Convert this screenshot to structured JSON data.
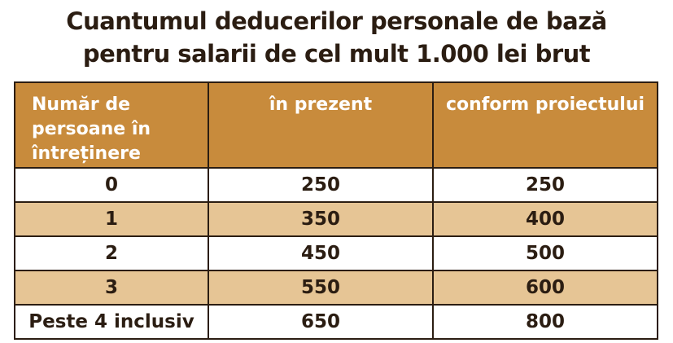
{
  "title": {
    "line1": "Cuantumul deducerilor personale de bază",
    "line2": "pentru salarii de cel mult 1.000 lei brut"
  },
  "table": {
    "headers": [
      "Număr de persoane în întreținere",
      "în prezent",
      "conform proiectului"
    ],
    "rows": [
      [
        "0",
        "250",
        "250"
      ],
      [
        "1",
        "350",
        "400"
      ],
      [
        "2",
        "450",
        "500"
      ],
      [
        "3",
        "550",
        "600"
      ],
      [
        "Peste 4 inclusiv",
        "650",
        "800"
      ]
    ]
  },
  "colors": {
    "header_bg": "#c88b3c",
    "stripe_bg": "#e6c595",
    "text": "#2b1d12"
  }
}
